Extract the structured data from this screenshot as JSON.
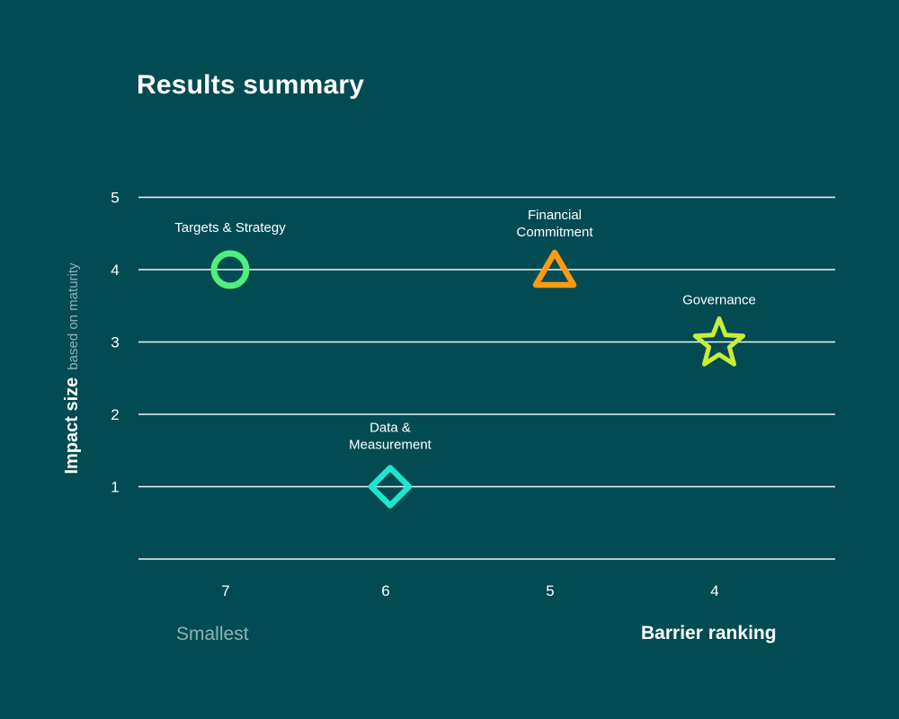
{
  "colors": {
    "background": "#024b52",
    "gridline": "#ffffff",
    "muted_text": "#8fb2b5"
  },
  "chart_data": {
    "type": "scatter",
    "title": "Results summary",
    "ylabel": "Impact size",
    "ylabel_note": "based on maturity",
    "xlabel": "Barrier ranking",
    "x_annotation": "Smallest",
    "x_ticks": [
      "7",
      "6",
      "5",
      "4"
    ],
    "y_ticks": [
      "5",
      "4",
      "3",
      "2",
      "1"
    ],
    "ylim": [
      0,
      5
    ],
    "grid": true,
    "points": [
      {
        "label": "Targets & Strategy",
        "x": 7,
        "y": 4,
        "marker": "circle",
        "color": "#4df07c"
      },
      {
        "label": "Data & Measurement",
        "x": 6,
        "y": 1,
        "marker": "diamond",
        "color": "#1de6d0"
      },
      {
        "label": "Financial Commitment",
        "x": 5,
        "y": 4,
        "marker": "triangle",
        "color": "#ff9a16"
      },
      {
        "label": "Governance",
        "x": 4,
        "y": 3,
        "marker": "star",
        "color": "#c7ee3a"
      }
    ]
  }
}
